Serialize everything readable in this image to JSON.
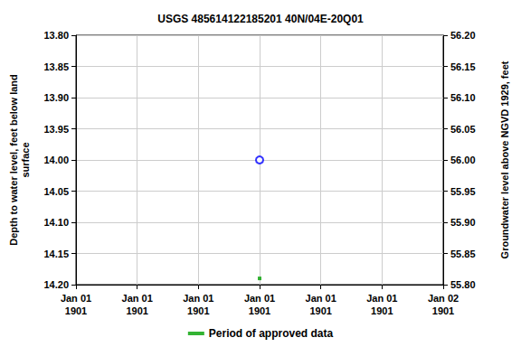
{
  "chart_data": {
    "type": "scatter",
    "title": "USGS 485614122185201 40N/04E-20Q01",
    "x_label_rows": true,
    "categories": [
      "Jan 01\n1901",
      "Jan 01\n1901",
      "Jan 01\n1901",
      "Jan 01\n1901",
      "Jan 01\n1901",
      "Jan 01\n1901",
      "Jan 02\n1901"
    ],
    "ylabel": "Depth to water level, feet below land\nsurface",
    "y2label": "Groundwater level above NGVD 1929, feet",
    "ylim": [
      14.2,
      13.8
    ],
    "yticks": [
      {
        "value": 13.8,
        "label": "13.80"
      },
      {
        "value": 13.85,
        "label": "13.85"
      },
      {
        "value": 13.9,
        "label": "13.90"
      },
      {
        "value": 13.95,
        "label": "13.95"
      },
      {
        "value": 14.0,
        "label": "14.00"
      },
      {
        "value": 14.05,
        "label": "14.05"
      },
      {
        "value": 14.1,
        "label": "14.10"
      },
      {
        "value": 14.15,
        "label": "14.15"
      },
      {
        "value": 14.2,
        "label": "14.20"
      }
    ],
    "y2lim": [
      55.8,
      56.2
    ],
    "y2ticks": [
      {
        "value": 55.8,
        "label": "55.80"
      },
      {
        "value": 55.85,
        "label": "55.85"
      },
      {
        "value": 55.9,
        "label": "55.90"
      },
      {
        "value": 55.95,
        "label": "55.95"
      },
      {
        "value": 56.0,
        "label": "56.00"
      },
      {
        "value": 56.05,
        "label": "56.05"
      },
      {
        "value": 56.1,
        "label": "56.10"
      },
      {
        "value": 56.15,
        "label": "56.15"
      },
      {
        "value": 56.2,
        "label": "56.20"
      }
    ],
    "grid": true,
    "legend": "bottom",
    "series": [
      {
        "color": "#0000ff",
        "marker": "open_circle",
        "values": [
          null,
          null,
          null,
          14.0,
          null,
          null,
          null
        ]
      },
      {
        "name": "Period of approved data",
        "color": "#00a000",
        "marker": "square",
        "values": [
          null,
          null,
          null,
          14.19,
          null,
          null,
          null
        ]
      }
    ]
  }
}
